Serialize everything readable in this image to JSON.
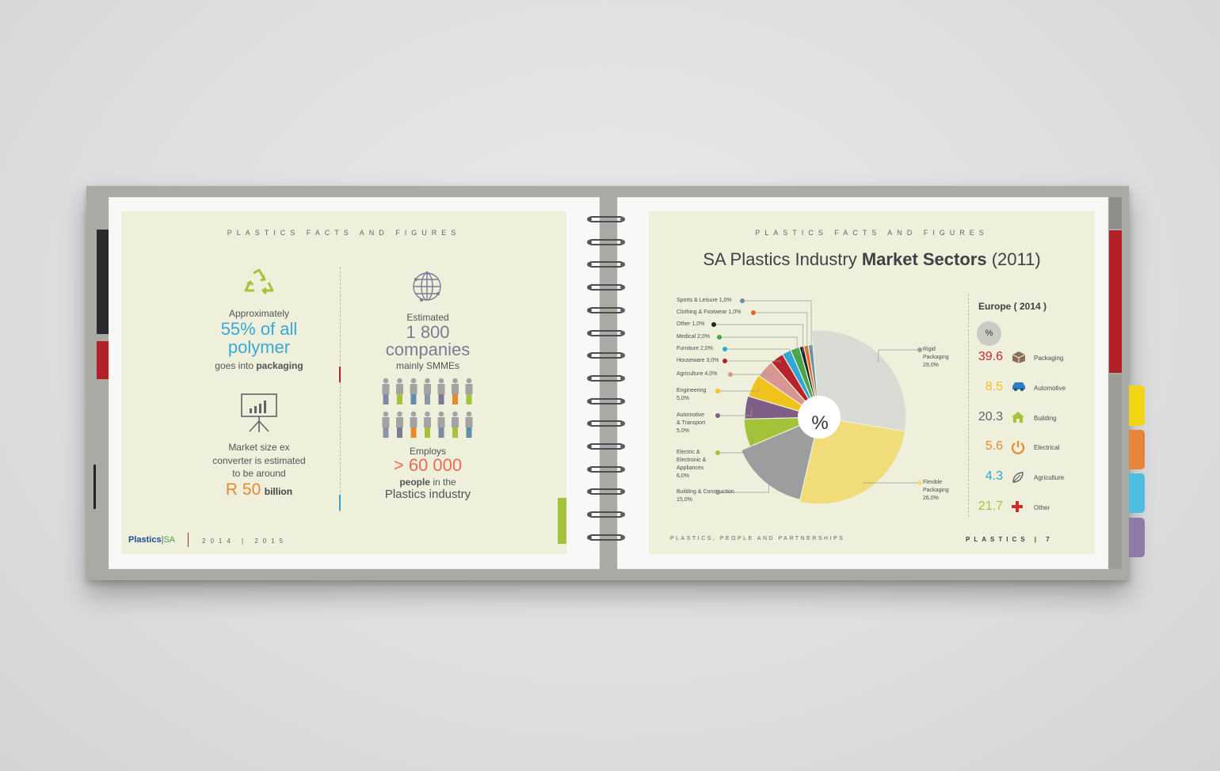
{
  "left_page": {
    "header": "PLASTICS FACTS AND FIGURES",
    "fact1": {
      "pre": "Approximately",
      "highlight1": "55% of all",
      "highlight2": "polymer",
      "post_a": "goes into ",
      "post_b": "packaging"
    },
    "fact2": {
      "line1": "Market size ex",
      "line2": "converter is estimated",
      "line3": "to be around",
      "value": "R 50",
      "unit": "billion"
    },
    "fact3": {
      "pre": "Estimated",
      "value": "1 800",
      "noun": "companies",
      "sub": "mainly SMMEs"
    },
    "fact4": {
      "pre": "Employs",
      "value": "> 60 000",
      "post_a": "people",
      "post_b": " in the",
      "post_c": "Plastics industry"
    },
    "footer_logo_a": "Plastics",
    "footer_logo_b": "SA",
    "footer_years": "2014 | 2015"
  },
  "right_page": {
    "header": "PLASTICS FACTS AND FIGURES",
    "title_a": "SA Plastics Industry ",
    "title_b": "Market Sectors",
    "title_c": " (2011)",
    "center_symbol": "%",
    "footer_left": "PLASTICS, PEOPLE AND PARTNERSHIPS",
    "footer_right": "PLASTICS | 7"
  },
  "chart_data": {
    "type": "pie",
    "title": "SA Plastics Industry Market Sectors (2011)",
    "unit": "%",
    "slices": [
      {
        "label": "Rigid Packaging",
        "value": 29.0,
        "display": "Rigid\nPackaging\n29,0%",
        "color": "#d9dbd5"
      },
      {
        "label": "Flexible Packaging",
        "value": 26.0,
        "display": "Flexible\nPackaging\n26,0%",
        "color": "#f1dc7a"
      },
      {
        "label": "Building & Construction",
        "value": 15.0,
        "display": "Building & Construction\n15,0%",
        "color": "#9c9d9f"
      },
      {
        "label": "Electric & Electronic & Appliances",
        "value": 6.0,
        "display": "Electric &\nElectronic &\nAppliances\n6,0%",
        "color": "#a5c33a"
      },
      {
        "label": "Automotive & Transport",
        "value": 5.0,
        "display": "Automotive\n& Transport\n5,0%",
        "color": "#7e5e85"
      },
      {
        "label": "Engineering",
        "value": 5.0,
        "display": "Engineering\n5,0%",
        "color": "#f1c21b"
      },
      {
        "label": "Agriculture",
        "value": 4.0,
        "display": "Agriculture  4,0%",
        "color": "#d89690"
      },
      {
        "label": "Houseware",
        "value": 3.0,
        "display": "Houseware  3,0%",
        "color": "#b5232d"
      },
      {
        "label": "Furniture",
        "value": 2.0,
        "display": "Furniture  2,0%",
        "color": "#2ea6da"
      },
      {
        "label": "Medical",
        "value": 2.0,
        "display": "Medical  2,0%",
        "color": "#47a64c"
      },
      {
        "label": "Other",
        "value": 1.0,
        "display": "Other  1,0%",
        "color": "#222427"
      },
      {
        "label": "Clothing & Footwear",
        "value": 1.0,
        "display": "Clothing & Footwear  1,0%",
        "color": "#e06a2a"
      },
      {
        "label": "Sports & Leisure",
        "value": 1.0,
        "display": "Sports & Leisure 1,0%",
        "color": "#6f8fa3"
      }
    ]
  },
  "europe": {
    "title": "Europe ( 2014 )",
    "symbol": "%",
    "rows": [
      {
        "value": "39.6",
        "label": "Packaging",
        "color": "#c8262f",
        "icon": "box-icon"
      },
      {
        "value": "8.5",
        "label": "Automotive",
        "color": "#f1c21b",
        "icon": "car-icon"
      },
      {
        "value": "20.3",
        "label": "Building",
        "color": "#5f6466",
        "icon": "house-icon"
      },
      {
        "value": "5.6",
        "label": "Electrical",
        "color": "#e58a2f",
        "icon": "power-icon"
      },
      {
        "value": "4.3",
        "label": "Agriculture",
        "color": "#2ea6da",
        "icon": "plant-icon"
      },
      {
        "value": "21.7",
        "label": "Other",
        "color": "#a5c33a",
        "icon": "plus-icon"
      }
    ]
  }
}
